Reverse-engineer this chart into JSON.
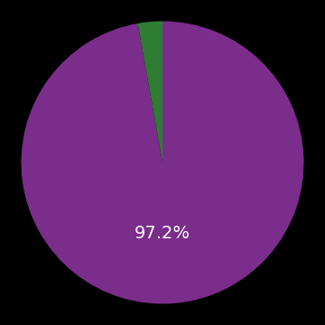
{
  "slices": [
    97.2,
    2.8
  ],
  "colors": [
    "#7b2d8b",
    "#2e7d32"
  ],
  "label": "97.2%",
  "label_color": "#ffffff",
  "label_fontsize": 14,
  "background_color": "#000000",
  "startangle": 90,
  "counterclock": false
}
